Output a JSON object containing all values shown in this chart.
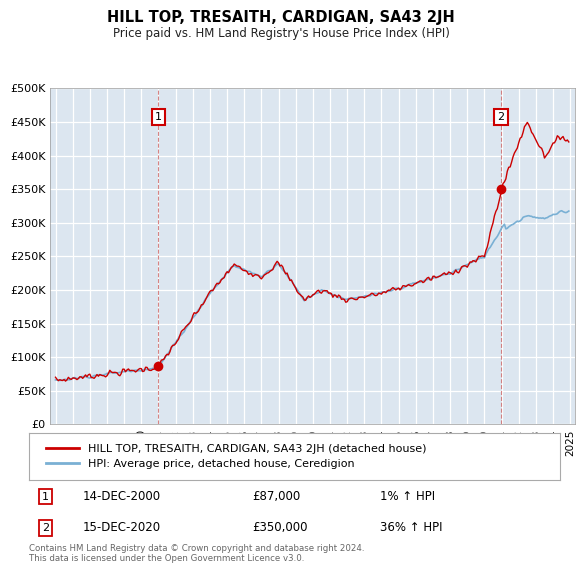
{
  "title": "HILL TOP, TRESAITH, CARDIGAN, SA43 2JH",
  "subtitle": "Price paid vs. HM Land Registry's House Price Index (HPI)",
  "footer": "Contains HM Land Registry data © Crown copyright and database right 2024.\nThis data is licensed under the Open Government Licence v3.0.",
  "legend_line1": "HILL TOP, TRESAITH, CARDIGAN, SA43 2JH (detached house)",
  "legend_line2": "HPI: Average price, detached house, Ceredigion",
  "annotation1_date": "14-DEC-2000",
  "annotation1_price": "£87,000",
  "annotation1_hpi": "1% ↑ HPI",
  "annotation2_date": "15-DEC-2020",
  "annotation2_price": "£350,000",
  "annotation2_hpi": "36% ↑ HPI",
  "line_color_red": "#cc0000",
  "line_color_blue": "#7ab0d4",
  "background_color": "#dce6f0",
  "ylim": [
    0,
    500000
  ],
  "yticks": [
    0,
    50000,
    100000,
    150000,
    200000,
    250000,
    300000,
    350000,
    400000,
    450000,
    500000
  ],
  "sale1_year": 2001.0,
  "sale1_price": 87000,
  "sale2_year": 2020.95,
  "sale2_price": 350000
}
